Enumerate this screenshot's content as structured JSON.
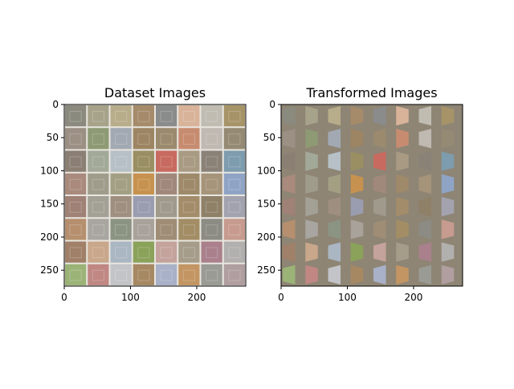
{
  "chart_data": [
    {
      "type": "image-grid",
      "title": "Dataset Images",
      "grid": {
        "rows": 8,
        "cols": 8
      },
      "xlim": [
        0,
        274
      ],
      "ylim": [
        274,
        0
      ],
      "xticks": [
        0,
        100,
        200
      ],
      "yticks": [
        0,
        50,
        100,
        150,
        200,
        250
      ],
      "tile_colors": [
        [
          "#8b8a7f",
          "#a7a38a",
          "#b7ad8a",
          "#a58b6a",
          "#8a8c8c",
          "#d8b39a",
          "#c0bcb2",
          "#a69468"
        ],
        [
          "#9c8f84",
          "#8d9a73",
          "#a2a9b3",
          "#9d8563",
          "#9b8a6d",
          "#c78c70",
          "#bfb9b2",
          "#958b74"
        ],
        [
          "#8b7f74",
          "#a2a998",
          "#b6c0c6",
          "#9a8f63",
          "#c86a5f",
          "#a99b83",
          "#8a8277",
          "#7d9cad"
        ],
        [
          "#a98a7c",
          "#a09c8b",
          "#a39f83",
          "#c7924f",
          "#a0887a",
          "#9e8a6a",
          "#a6947a",
          "#8fa4c5"
        ],
        [
          "#9f8175",
          "#a3a095",
          "#9f8f80",
          "#9a9cb0",
          "#a09a8d",
          "#a38c6a",
          "#8f8068",
          "#a3a3b0"
        ],
        [
          "#b58f6e",
          "#a9a6a1",
          "#8b9482",
          "#a9a29b",
          "#9f8d76",
          "#a28d65",
          "#8c8c84",
          "#c79b8f"
        ],
        [
          "#a08068",
          "#c9a78b",
          "#aab6c2",
          "#8aa25a",
          "#c4a39d",
          "#a69c8a",
          "#a9808c",
          "#b2b0ae"
        ],
        [
          "#9bb377",
          "#c08783",
          "#c2c4c7",
          "#a68863",
          "#a9b1c8",
          "#c39563",
          "#9a9b94",
          "#b09ea0"
        ]
      ]
    },
    {
      "type": "image-grid",
      "title": "Transformed Images",
      "grid": {
        "rows": 8,
        "cols": 8
      },
      "xlim": [
        0,
        274
      ],
      "ylim": [
        274,
        0
      ],
      "xticks": [
        0,
        100,
        200
      ],
      "yticks": [
        0,
        50,
        100,
        150,
        200,
        250
      ],
      "background_color": "#8e8575",
      "note": "each tile horizontally squeezed and sheared over gray background"
    }
  ],
  "colors": {
    "frame": "#000000",
    "background": "#ffffff"
  }
}
